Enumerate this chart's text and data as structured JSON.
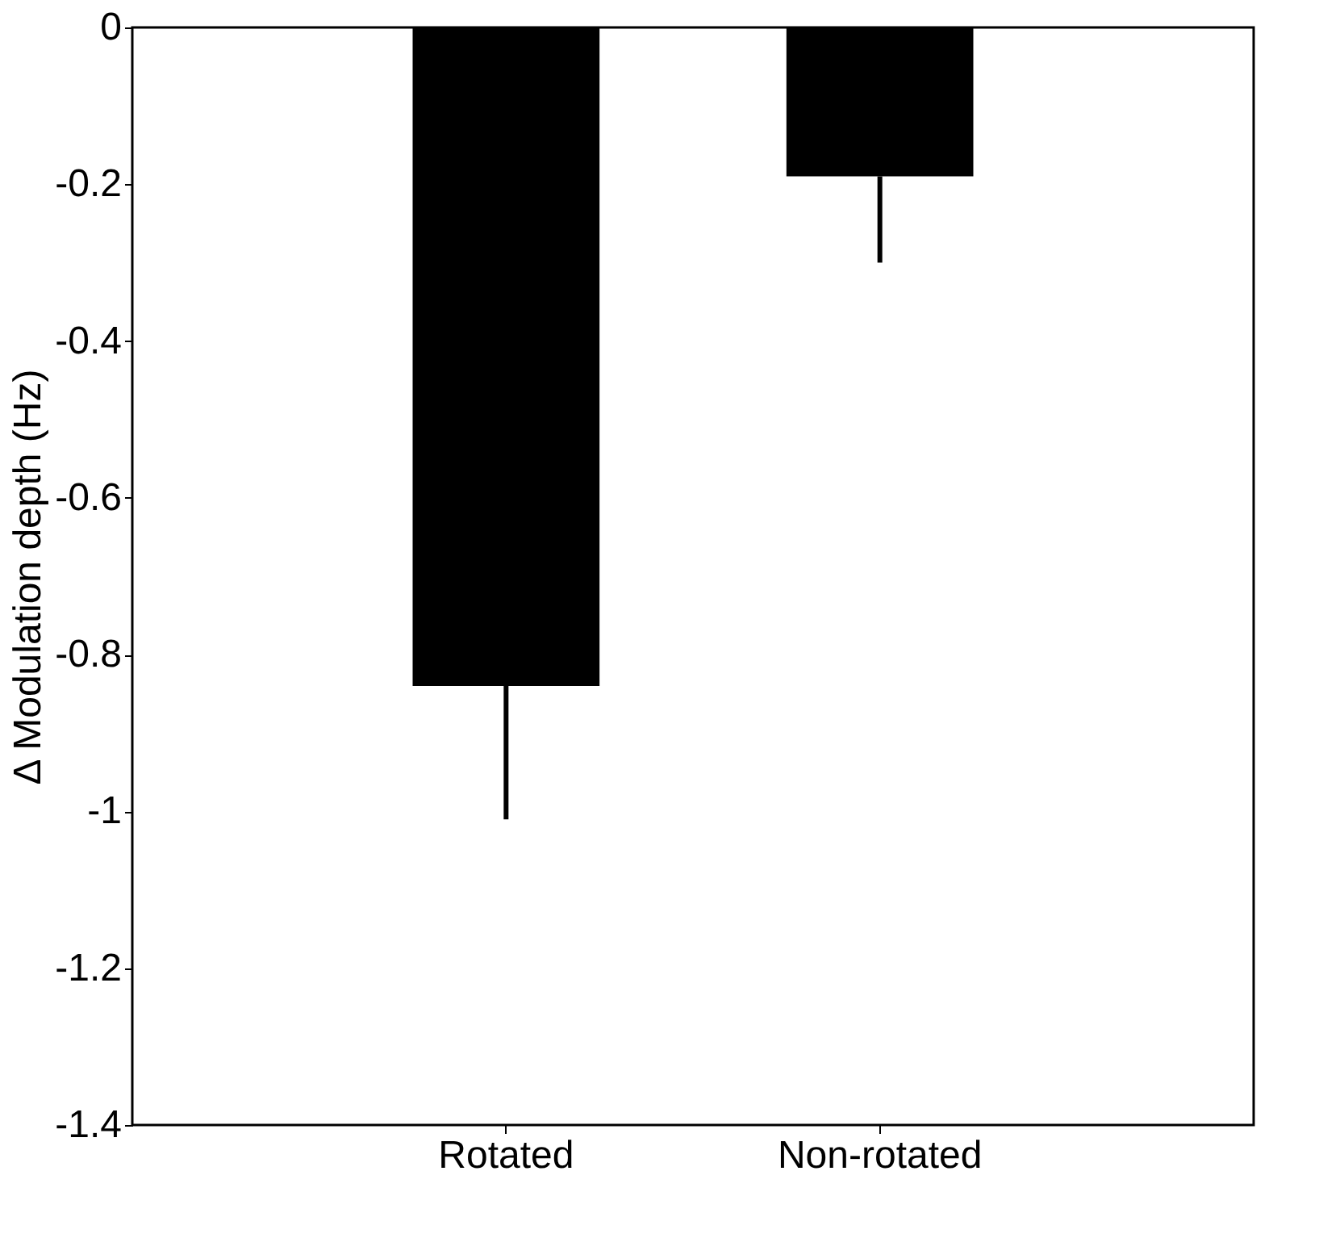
{
  "chart_data": {
    "type": "bar",
    "ylabel": "Δ Modulation depth (Hz)",
    "categories": [
      "Rotated",
      "Non-rotated"
    ],
    "values": [
      -0.84,
      -0.19
    ],
    "errors": [
      [
        -1.01,
        -0.84
      ],
      [
        -0.3,
        -0.19
      ]
    ],
    "color": "#000000",
    "ylim": [
      -1.4,
      0
    ],
    "yticks": [
      0,
      -0.2,
      -0.4,
      -0.6,
      -0.8,
      -1,
      -1.2,
      -1.4
    ],
    "grid": false
  }
}
